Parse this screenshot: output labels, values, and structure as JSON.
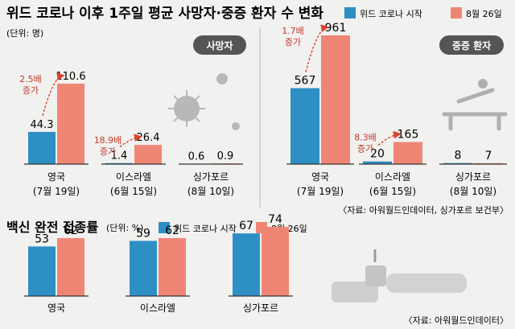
{
  "header": {
    "title": "위드 코로나 이후 1주일 평균 사망자·중증 환자 수 변화",
    "unit": "(단위: 명)"
  },
  "legend": {
    "start": "위드 코로나 시작",
    "aug": "8월 26일"
  },
  "colors": {
    "start": "#2e8fc4",
    "aug": "#ef8675",
    "arrow": "#d9442b",
    "divider": "#b9b9b9"
  },
  "deaths_badge": "사망자",
  "severe_badge": "중증 환자",
  "source_top": "〈자료: 아워월드인데이터, 싱가포르 보건부〉",
  "vaccine": {
    "title": "백신 완전 접종률",
    "unit": "(단위: %)",
    "source": "〈자료: 아워월드인데이터〉"
  },
  "chart_data": [
    {
      "type": "bar",
      "title": "위드 코로나 이후 1주일 평균 사망자",
      "categories": [
        "영국",
        "이스라엘",
        "싱가포르"
      ],
      "category_dates": [
        "(7월 19일)",
        "(6월 15일)",
        "(8월 10일)"
      ],
      "series": [
        {
          "name": "위드 코로나 시작",
          "values": [
            44.3,
            1.4,
            0.6
          ]
        },
        {
          "name": "8월 26일",
          "values": [
            110.6,
            26.4,
            0.9
          ]
        }
      ],
      "annotations": [
        {
          "category": "영국",
          "text": [
            "2.5배",
            "증가"
          ]
        },
        {
          "category": "이스라엘",
          "text": [
            "18.9배",
            "증가"
          ]
        }
      ],
      "ylim": [
        0,
        120
      ]
    },
    {
      "type": "bar",
      "title": "위드 코로나 이후 1주일 평균 중증 환자",
      "categories": [
        "영국",
        "이스라엘",
        "싱가포르"
      ],
      "category_dates": [
        "(7월 19일)",
        "(6월 15일)",
        "(8월 10일)"
      ],
      "series": [
        {
          "name": "위드 코로나 시작",
          "values": [
            567,
            20,
            8
          ]
        },
        {
          "name": "8월 26일",
          "values": [
            961,
            165,
            7
          ]
        }
      ],
      "annotations": [
        {
          "category": "영국",
          "text": [
            "1.7배",
            "증가"
          ]
        },
        {
          "category": "이스라엘",
          "text": [
            "8.3배",
            "증가"
          ]
        }
      ],
      "ylim": [
        0,
        1000
      ]
    },
    {
      "type": "bar",
      "title": "백신 완전 접종률",
      "categories": [
        "영국",
        "이스라엘",
        "싱가포르"
      ],
      "series": [
        {
          "name": "위드 코로나 시작",
          "values": [
            53,
            59,
            67
          ]
        },
        {
          "name": "8월 26일",
          "values": [
            62,
            62,
            74
          ]
        }
      ],
      "ylim": [
        0,
        100
      ]
    }
  ]
}
